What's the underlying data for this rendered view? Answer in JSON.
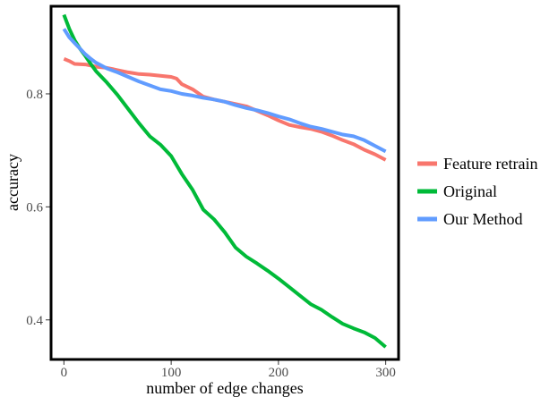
{
  "chart_data": {
    "type": "line",
    "title": "",
    "xlabel": "number of edge changes",
    "ylabel": "accuracy",
    "xlim": [
      -12,
      312
    ],
    "ylim": [
      0.33,
      0.955
    ],
    "xticks": [
      0,
      100,
      200,
      300
    ],
    "yticks": [
      0.4,
      0.6,
      0.8
    ],
    "yticklabels": [
      "0.4",
      "0.6",
      "0.8"
    ],
    "grid": false,
    "legend_position": "right",
    "series": [
      {
        "name": "Feature retrain",
        "color": "#F8766D",
        "x": [
          0,
          5,
          10,
          20,
          30,
          40,
          50,
          60,
          70,
          80,
          90,
          100,
          105,
          110,
          120,
          130,
          140,
          150,
          160,
          170,
          180,
          190,
          200,
          210,
          220,
          230,
          240,
          250,
          260,
          270,
          280,
          290,
          300
        ],
        "y": [
          0.862,
          0.858,
          0.853,
          0.852,
          0.848,
          0.846,
          0.842,
          0.838,
          0.835,
          0.834,
          0.832,
          0.83,
          0.827,
          0.817,
          0.808,
          0.795,
          0.79,
          0.786,
          0.782,
          0.778,
          0.77,
          0.762,
          0.753,
          0.745,
          0.741,
          0.738,
          0.733,
          0.726,
          0.718,
          0.711,
          0.701,
          0.693,
          0.683
        ]
      },
      {
        "name": "Original",
        "color": "#00BA38",
        "x": [
          0,
          5,
          10,
          15,
          20,
          25,
          30,
          40,
          50,
          60,
          70,
          80,
          90,
          100,
          110,
          120,
          130,
          140,
          150,
          160,
          170,
          180,
          190,
          200,
          210,
          220,
          230,
          240,
          250,
          260,
          270,
          280,
          290,
          300
        ],
        "y": [
          0.94,
          0.915,
          0.895,
          0.88,
          0.867,
          0.853,
          0.84,
          0.82,
          0.798,
          0.773,
          0.748,
          0.725,
          0.71,
          0.69,
          0.658,
          0.63,
          0.595,
          0.578,
          0.555,
          0.528,
          0.512,
          0.5,
          0.487,
          0.473,
          0.458,
          0.443,
          0.428,
          0.418,
          0.405,
          0.393,
          0.385,
          0.378,
          0.368,
          0.352
        ]
      },
      {
        "name": "Our Method",
        "color": "#619CFF",
        "x": [
          0,
          5,
          10,
          15,
          20,
          25,
          30,
          40,
          50,
          60,
          70,
          80,
          90,
          100,
          110,
          120,
          130,
          140,
          150,
          160,
          170,
          180,
          190,
          200,
          210,
          220,
          230,
          240,
          250,
          260,
          270,
          280,
          290,
          300
        ],
        "y": [
          0.915,
          0.9,
          0.89,
          0.88,
          0.87,
          0.862,
          0.855,
          0.845,
          0.838,
          0.83,
          0.822,
          0.815,
          0.808,
          0.805,
          0.8,
          0.797,
          0.793,
          0.79,
          0.786,
          0.78,
          0.775,
          0.771,
          0.766,
          0.76,
          0.755,
          0.748,
          0.742,
          0.738,
          0.733,
          0.728,
          0.725,
          0.718,
          0.708,
          0.698
        ]
      }
    ]
  }
}
